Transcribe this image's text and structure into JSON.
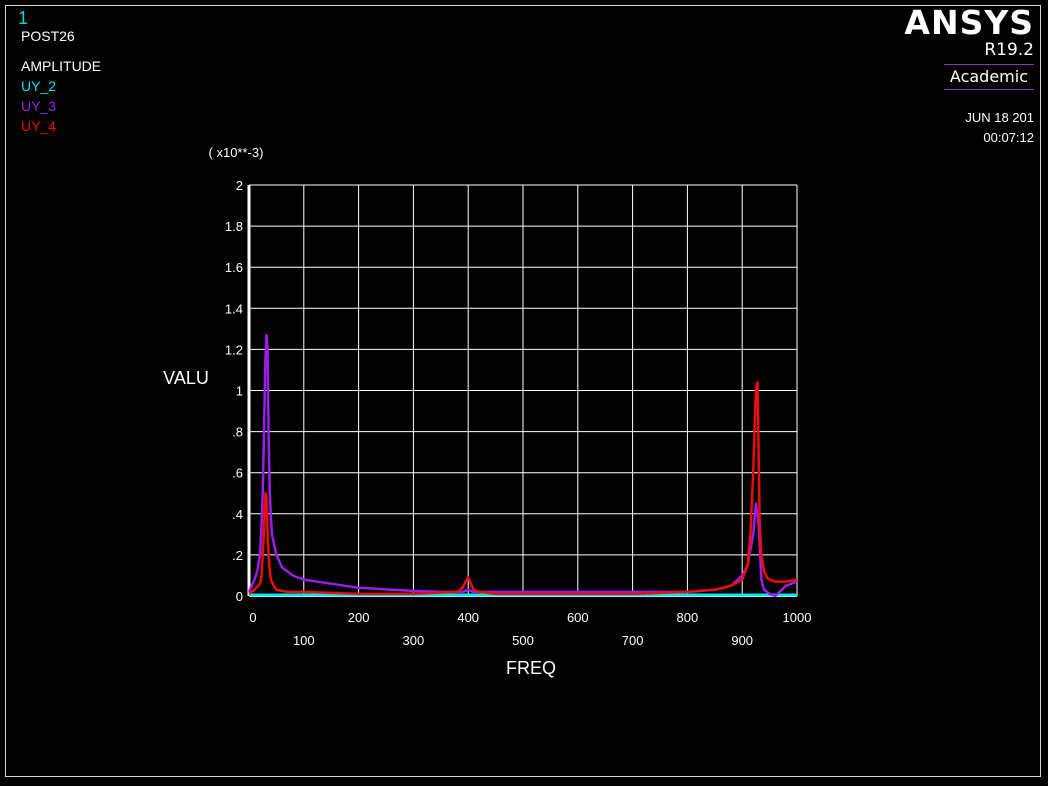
{
  "header": {
    "window_number": "1",
    "module": "POST26",
    "plot_label": "AMPLITUDE"
  },
  "logo": {
    "name": "ANSYS",
    "version": "R19.2",
    "edition": "Academic"
  },
  "timestamp": {
    "date": "JUN 18 201",
    "time": "00:07:12"
  },
  "colors": {
    "background": "#000000",
    "grid": "#ffffff",
    "window_number": "#00d7e0",
    "UY_2": "#00e5f0",
    "UY_3": "#9a1ee8",
    "UY_4": "#f00a0a"
  },
  "chart_data": {
    "type": "line",
    "xlabel": "FREQ",
    "ylabel": "VALU",
    "y_multiplier_label": "( x10**-3)",
    "xlim": [
      0,
      1000
    ],
    "ylim": [
      0,
      2
    ],
    "x_ticks": [
      0,
      100,
      200,
      300,
      400,
      500,
      600,
      700,
      800,
      900,
      1000
    ],
    "x_tick_labels": [
      "0",
      "100",
      "200",
      "300",
      "400",
      "500",
      "600",
      "700",
      "800",
      "900",
      "1000"
    ],
    "y_ticks": [
      0,
      0.2,
      0.4,
      0.6,
      0.8,
      1.0,
      1.2,
      1.4,
      1.6,
      1.8,
      2.0
    ],
    "y_tick_labels": [
      "0",
      ".2",
      ".4",
      ".6",
      ".8",
      "1",
      "1.2",
      "1.4",
      "1.6",
      "1.8",
      "2"
    ],
    "grid": true,
    "series": [
      {
        "name": "UY_2",
        "x": [
          0,
          100,
          200,
          300,
          400,
          500,
          600,
          700,
          800,
          900,
          1000
        ],
        "y": [
          0.005,
          0.005,
          0.005,
          0.005,
          0.005,
          0.005,
          0.005,
          0.005,
          0.005,
          0.005,
          0.005
        ]
      },
      {
        "name": "UY_3",
        "x": [
          0,
          5,
          10,
          15,
          20,
          23,
          25,
          27,
          30,
          32,
          34,
          36,
          38,
          40,
          42,
          45,
          50,
          60,
          80,
          100,
          150,
          200,
          300,
          350,
          390,
          400,
          410,
          450,
          500,
          600,
          700,
          800,
          850,
          880,
          900,
          910,
          920,
          925,
          930,
          935,
          940,
          950,
          960,
          980,
          1000
        ],
        "y": [
          0.02,
          0.05,
          0.08,
          0.12,
          0.2,
          0.35,
          0.5,
          0.75,
          1.15,
          1.27,
          1.2,
          0.75,
          0.5,
          0.38,
          0.3,
          0.26,
          0.2,
          0.14,
          0.1,
          0.08,
          0.06,
          0.04,
          0.025,
          0.02,
          0.02,
          0.03,
          0.02,
          0.02,
          0.02,
          0.02,
          0.02,
          0.02,
          0.03,
          0.05,
          0.1,
          0.15,
          0.3,
          0.45,
          0.35,
          0.08,
          0.03,
          0.01,
          0.0,
          0.05,
          0.07
        ]
      },
      {
        "name": "UY_4",
        "x": [
          0,
          10,
          20,
          23,
          25,
          27,
          30,
          32,
          34,
          36,
          38,
          40,
          45,
          50,
          70,
          100,
          200,
          300,
          380,
          390,
          395,
          400,
          405,
          410,
          420,
          450,
          500,
          600,
          700,
          800,
          850,
          880,
          900,
          910,
          915,
          920,
          925,
          928,
          930,
          932,
          935,
          940,
          945,
          950,
          960,
          980,
          1000
        ],
        "y": [
          0.01,
          0.03,
          0.06,
          0.1,
          0.2,
          0.3,
          0.5,
          0.48,
          0.3,
          0.2,
          0.12,
          0.08,
          0.05,
          0.03,
          0.02,
          0.02,
          0.01,
          0.01,
          0.02,
          0.04,
          0.07,
          0.09,
          0.06,
          0.03,
          0.02,
          0.01,
          0.01,
          0.01,
          0.01,
          0.02,
          0.03,
          0.05,
          0.08,
          0.15,
          0.3,
          0.6,
          1.0,
          1.04,
          0.7,
          0.35,
          0.2,
          0.12,
          0.09,
          0.08,
          0.07,
          0.07,
          0.08
        ]
      }
    ]
  }
}
